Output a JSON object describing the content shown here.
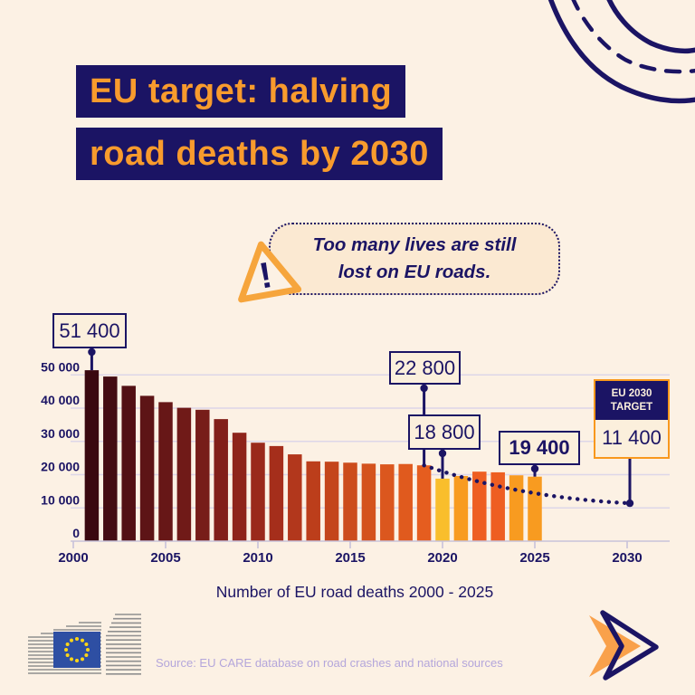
{
  "title": {
    "line1": "EU target: halving",
    "line2": "road deaths by 2030"
  },
  "warning_callout": {
    "line1": "Too many lives are still",
    "line2": "lost on EU roads.",
    "icon": "warning-triangle-icon"
  },
  "chart_data": {
    "type": "bar",
    "title": "Number of EU road deaths 2000 - 2025",
    "xlabel": "",
    "ylabel": "",
    "ylim": [
      0,
      52000
    ],
    "grid": true,
    "ytick_values": [
      0,
      10000,
      20000,
      30000,
      40000,
      50000
    ],
    "ytick_labels": [
      "0",
      "10 000",
      "20 000",
      "30 000",
      "40 000",
      "50 000"
    ],
    "xtick_years": [
      2000,
      2005,
      2010,
      2015,
      2020,
      2025,
      2030
    ],
    "xtick_labels": [
      "2000",
      "2005",
      "2010",
      "2015",
      "2020",
      "2025",
      "2030"
    ],
    "years": [
      2001,
      2002,
      2003,
      2004,
      2005,
      2006,
      2007,
      2008,
      2009,
      2010,
      2011,
      2012,
      2013,
      2014,
      2015,
      2016,
      2017,
      2018,
      2019,
      2020,
      2021,
      2022,
      2023,
      2024,
      2025
    ],
    "values": [
      51400,
      49500,
      46700,
      43700,
      41800,
      40100,
      39500,
      36700,
      32600,
      29600,
      28600,
      26100,
      24000,
      23900,
      23600,
      23300,
      23100,
      23200,
      22800,
      18800,
      19600,
      20900,
      20700,
      19800,
      19400
    ],
    "bar_colors": [
      "#3A080F",
      "#440C12",
      "#521014",
      "#5D1416",
      "#671717",
      "#701A18",
      "#771D19",
      "#821F19",
      "#8E241A",
      "#9A291B",
      "#A52E1B",
      "#B2371C",
      "#BC3E1B",
      "#C4451B",
      "#CC4C1C",
      "#D4521D",
      "#DB571E",
      "#E05A1E",
      "#E55D1F",
      "#F9BE2C",
      "#F89B20",
      "#EE5E22",
      "#EE5E22",
      "#F89B20",
      "#F89B20"
    ],
    "annotations": [
      {
        "label": "51 400",
        "year": 2001,
        "value": 51400,
        "bold": false
      },
      {
        "label": "22 800",
        "year": 2019,
        "value": 22800,
        "bold": false
      },
      {
        "label": "18 800",
        "year": 2020,
        "value": 18800,
        "bold": false
      },
      {
        "label": "19 400",
        "year": 2025,
        "value": 19400,
        "bold": true
      }
    ],
    "target_box": {
      "header_line1": "EU 2030",
      "header_line2": "TARGET",
      "value_label": "11 400",
      "value": 11400,
      "year": 2030
    },
    "trendline": {
      "from_year": 2019,
      "from_value": 22800,
      "to_year": 2030,
      "to_value": 11400,
      "style": "dotted"
    }
  },
  "footer": {
    "source": "Source: EU CARE database on road crashes and national sources"
  },
  "icons": {
    "top_right": "road-curve-icon",
    "warning": "warning-triangle-icon",
    "bottom_right": "arrow-right-icon",
    "logo": "european-commission-logo",
    "flag": "eu-flag-icon"
  },
  "colors": {
    "background": "#FCF1E4",
    "navy": "#1B1464",
    "title_orange": "#F89B2D",
    "callout_cream": "#FBEFDC",
    "bubble_cream": "#FBE9D2",
    "gridline": "#DDD6E8",
    "axis": "#C8C2DA",
    "source_text": "#B4A6DB",
    "target_border": "#F8981D",
    "covid_bar_yellow": "#F9BE2C",
    "flag_blue": "#2E4FA3",
    "star_yellow": "#FFD617",
    "arrow_orange": "#F9A14B"
  }
}
